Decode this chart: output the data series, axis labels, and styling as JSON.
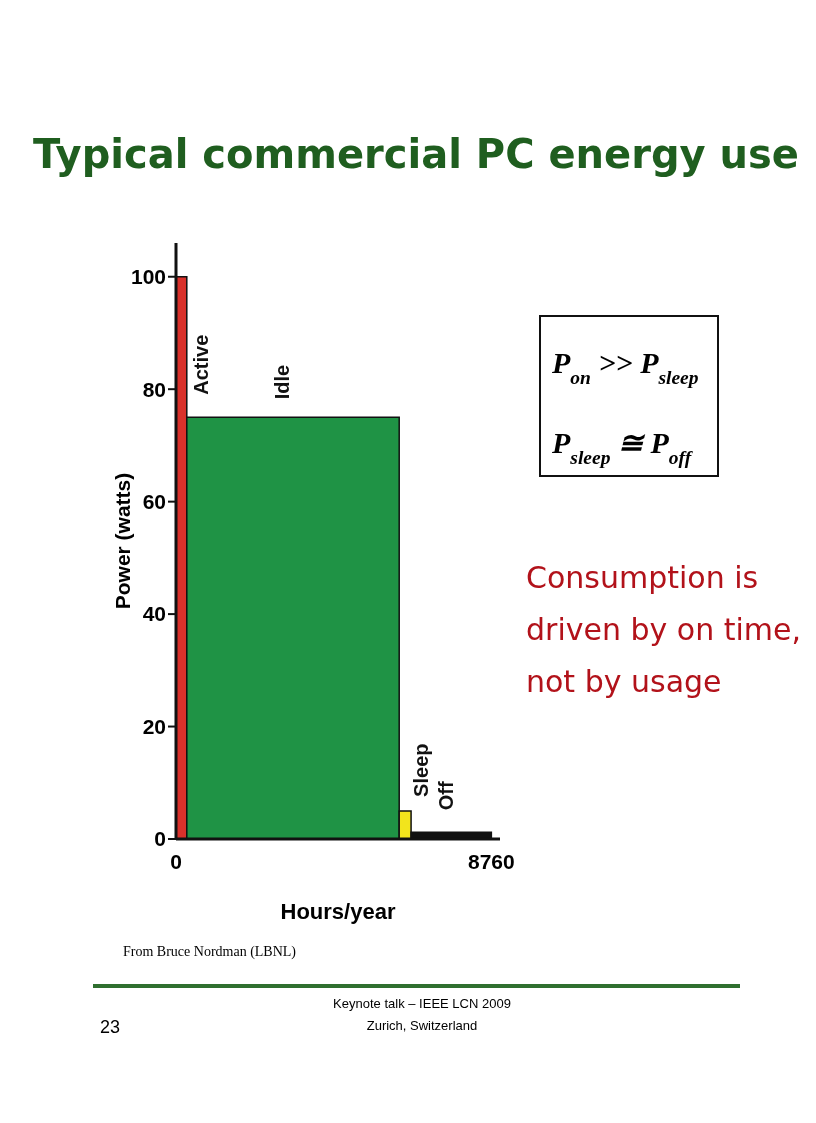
{
  "chart_data": {
    "type": "area",
    "title": "Typical commercial PC energy use",
    "xlabel": "Hours/year",
    "ylabel": "Power (watts)",
    "xlim": [
      0,
      9000
    ],
    "xticks": [
      0,
      8760
    ],
    "ylim": [
      0,
      106
    ],
    "yticks": [
      0,
      20,
      40,
      60,
      80,
      100
    ],
    "grid": false,
    "series": [
      {
        "name": "Active",
        "color": "#d9312b",
        "x": [
          0,
          300
        ],
        "values": [
          100,
          100
        ]
      },
      {
        "name": "Idle",
        "color": "#1f9345",
        "x": [
          300,
          6200
        ],
        "values": [
          75,
          75
        ]
      },
      {
        "name": "Sleep",
        "color": "#f2e41c",
        "x": [
          6200,
          6530
        ],
        "values": [
          5,
          5
        ]
      },
      {
        "name": "Off",
        "color": "#111111",
        "x": [
          6530,
          8760
        ],
        "values": [
          1.2,
          1.2
        ]
      }
    ],
    "annotations": [
      "P$_{on}$ >> P$_{sleep}$",
      "P$_{sleep}$ ≅ P$_{off}$",
      "Consumption is\ndriven by on time,\nnot by usage",
      "From Bruce Nordman (LBNL)",
      "23",
      "Keynote talk – IEEE LCN 2009\nZurich, Switzerland"
    ]
  }
}
